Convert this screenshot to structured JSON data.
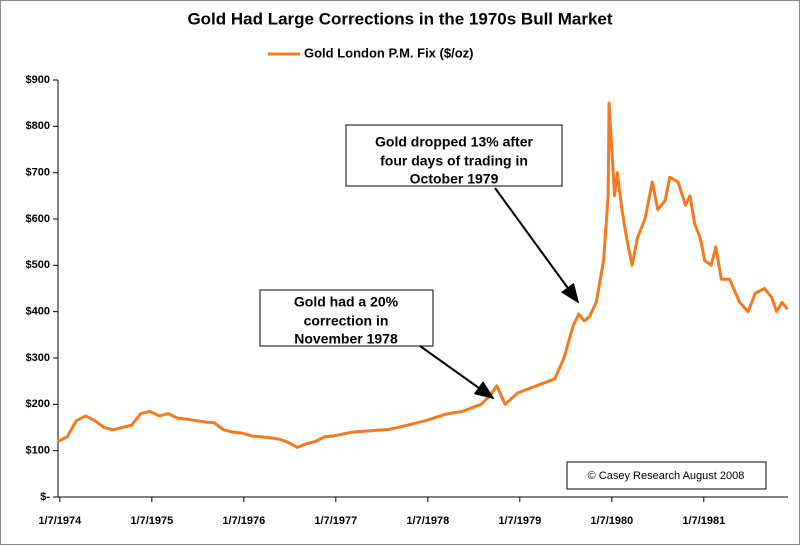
{
  "chart_data": {
    "type": "line",
    "title": "Gold Had Large Corrections in the 1970s Bull Market",
    "series": [
      {
        "name": "Gold London P.M. Fix ($/oz)",
        "color": "#f47a20",
        "x": [
          1974.0,
          1974.1,
          1974.2,
          1974.3,
          1974.4,
          1974.5,
          1974.6,
          1974.7,
          1974.8,
          1974.9,
          1975.0,
          1975.1,
          1975.2,
          1975.3,
          1975.4,
          1975.5,
          1975.6,
          1975.7,
          1975.8,
          1975.9,
          1976.0,
          1976.1,
          1976.2,
          1976.3,
          1976.4,
          1976.5,
          1976.6,
          1976.7,
          1976.8,
          1976.9,
          1977.0,
          1977.2,
          1977.4,
          1977.6,
          1977.8,
          1978.0,
          1978.2,
          1978.4,
          1978.6,
          1978.7,
          1978.77,
          1978.86,
          1979.0,
          1979.2,
          1979.4,
          1979.5,
          1979.6,
          1979.66,
          1979.72,
          1979.78,
          1979.85,
          1979.93,
          1979.98,
          1979.99,
          1980.05,
          1980.08,
          1980.13,
          1980.18,
          1980.24,
          1980.3,
          1980.38,
          1980.46,
          1980.52,
          1980.6,
          1980.65,
          1980.74,
          1980.82,
          1980.87,
          1980.92,
          1980.98,
          1981.03,
          1981.1,
          1981.15,
          1981.21,
          1981.3,
          1981.41,
          1981.5,
          1981.58,
          1981.68,
          1981.76,
          1981.81,
          1981.87,
          1981.93
        ],
        "values": [
          120,
          130,
          165,
          175,
          165,
          150,
          145,
          150,
          155,
          180,
          185,
          175,
          180,
          170,
          168,
          165,
          162,
          160,
          145,
          140,
          138,
          132,
          130,
          128,
          125,
          118,
          107,
          115,
          120,
          130,
          132,
          140,
          143,
          146,
          155,
          165,
          178,
          185,
          200,
          220,
          240,
          200,
          225,
          240,
          255,
          300,
          370,
          395,
          380,
          390,
          420,
          510,
          650,
          850,
          650,
          700,
          620,
          560,
          500,
          560,
          600,
          680,
          620,
          640,
          690,
          680,
          630,
          650,
          590,
          560,
          510,
          500,
          540,
          470,
          470,
          420,
          400,
          440,
          450,
          430,
          400,
          420,
          405
        ]
      }
    ],
    "xlim": [
      1974.0,
      1981.935
    ],
    "xticks": [
      {
        "value": 1974.02,
        "label": "1/7/1974"
      },
      {
        "value": 1975.02,
        "label": "1/7/1975"
      },
      {
        "value": 1976.02,
        "label": "1/7/1976"
      },
      {
        "value": 1977.02,
        "label": "1/7/1977"
      },
      {
        "value": 1978.02,
        "label": "1/7/1978"
      },
      {
        "value": 1979.02,
        "label": "1/7/1979"
      },
      {
        "value": 1980.02,
        "label": "1/7/1980"
      },
      {
        "value": 1981.02,
        "label": "1/7/1981"
      }
    ],
    "ylim": [
      0,
      900
    ],
    "yticks": [
      {
        "value": 0,
        "label": "$-"
      },
      {
        "value": 100,
        "label": "$100"
      },
      {
        "value": 200,
        "label": "$200"
      },
      {
        "value": 300,
        "label": "$300"
      },
      {
        "value": 400,
        "label": "$400"
      },
      {
        "value": 500,
        "label": "$500"
      },
      {
        "value": 600,
        "label": "$600"
      },
      {
        "value": 700,
        "label": "$700"
      },
      {
        "value": 800,
        "label": "$800"
      },
      {
        "value": 900,
        "label": "$900"
      }
    ],
    "grid": false,
    "legend": "top",
    "annotations": [
      {
        "lines": [
          "Gold dropped 13% after",
          "four days of trading in",
          "October 1979"
        ]
      },
      {
        "lines": [
          "Gold had a 20%",
          "correction in",
          "November 1978"
        ]
      },
      {
        "lines": [
          "© Casey Research August 2008"
        ]
      }
    ]
  }
}
